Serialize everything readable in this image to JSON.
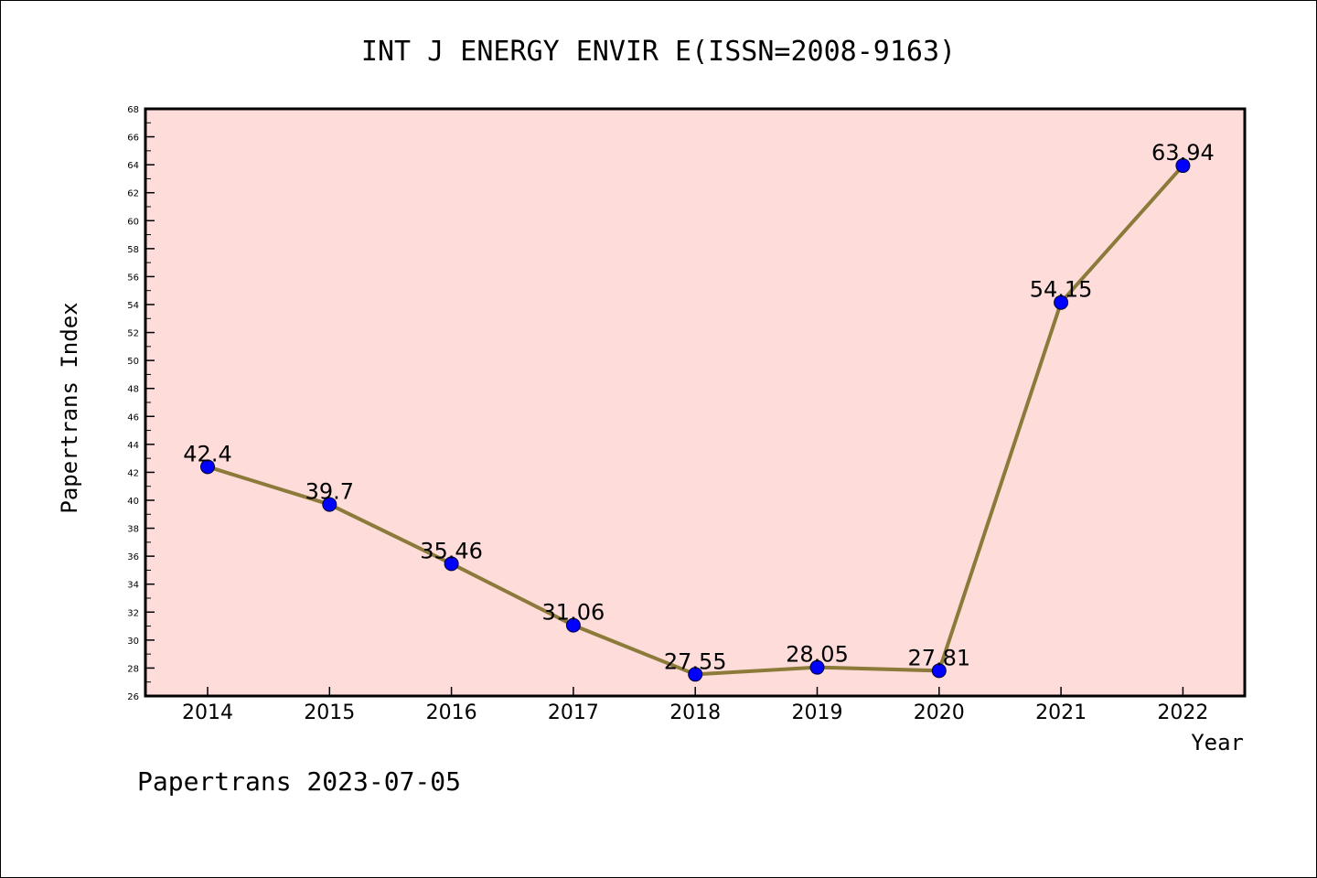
{
  "chart_data": {
    "type": "line",
    "title": "INT J ENERGY ENVIR E(ISSN=2008-9163)",
    "xlabel": "Year",
    "ylabel": "Papertrans Index",
    "categories": [
      "2014",
      "2015",
      "2016",
      "2017",
      "2018",
      "2019",
      "2020",
      "2021",
      "2022"
    ],
    "series": [
      {
        "values": [
          42.4,
          39.7,
          35.46,
          31.06,
          27.55,
          28.05,
          27.81,
          54.15,
          63.94
        ],
        "labels": [
          "42.4",
          "39.7",
          "35.46",
          "31.06",
          "27.55",
          "28.05",
          "27.81",
          "54.15",
          "63.94"
        ]
      }
    ],
    "ylim": [
      26,
      68
    ],
    "yticks": [
      "26",
      "28",
      "30",
      "32",
      "34",
      "36",
      "38",
      "40",
      "42",
      "44",
      "46",
      "48",
      "50",
      "52",
      "54",
      "56",
      "58",
      "60",
      "62",
      "64",
      "66",
      "68"
    ],
    "grid": false,
    "plot_background": "#fddcda",
    "line_color": "#8b7a3a",
    "marker_color": "#0000ff"
  },
  "footer": "Papertrans 2023-07-05"
}
